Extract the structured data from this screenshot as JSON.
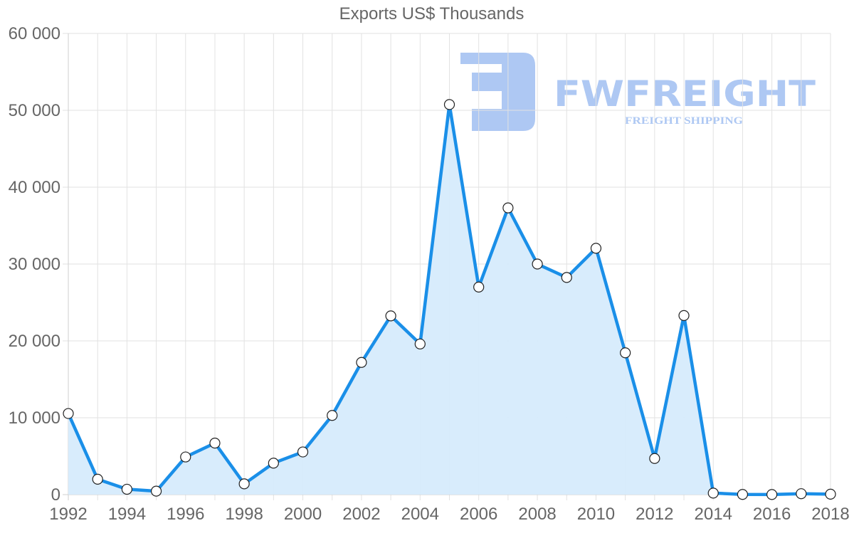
{
  "chart_data": {
    "type": "area",
    "title": "Exports US$ Thousands",
    "xlabel": "",
    "ylabel": "",
    "x": [
      1992,
      1993,
      1994,
      1995,
      1996,
      1997,
      1998,
      1999,
      2000,
      2001,
      2002,
      2003,
      2004,
      2005,
      2006,
      2007,
      2008,
      2009,
      2010,
      2011,
      2012,
      2013,
      2014,
      2015,
      2016,
      2017,
      2018
    ],
    "series": [
      {
        "name": "Exports US$ Thousands",
        "values": [
          10550,
          2000,
          700,
          450,
          4900,
          6700,
          1400,
          4100,
          5550,
          10300,
          17200,
          23250,
          19600,
          50750,
          27000,
          37300,
          30000,
          28250,
          32050,
          18450,
          4700,
          23300,
          200,
          20,
          10,
          120,
          60
        ],
        "color": "#1a8fe8",
        "fill": "#d6ebfc"
      }
    ],
    "xticks": [
      "1992",
      "1994",
      "1996",
      "1998",
      "2000",
      "2002",
      "2004",
      "2006",
      "2008",
      "2010",
      "2012",
      "2014",
      "2016",
      "2018"
    ],
    "yticks": [
      "0",
      "10 000",
      "20 000",
      "30 000",
      "40 000",
      "50 000",
      "60 000"
    ],
    "ylim": [
      0,
      60000
    ],
    "xlim": [
      1992,
      2018
    ],
    "grid": true,
    "legend": "none"
  },
  "watermark": {
    "brand": "FWFREIGHT",
    "tagline": "FREIGHT SHIPPING",
    "color": "#aec8f3"
  }
}
